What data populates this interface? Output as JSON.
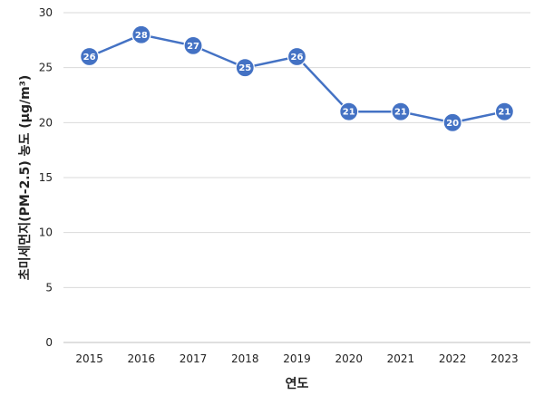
{
  "chart_data": {
    "type": "line",
    "title": "",
    "xlabel": "연도",
    "ylabel": "초미세먼지(PM-2.5) 농도 (μg/m³)",
    "categories": [
      "2015",
      "2016",
      "2017",
      "2018",
      "2019",
      "2020",
      "2021",
      "2022",
      "2023"
    ],
    "series": [
      {
        "values": [
          26,
          28,
          27,
          25,
          26,
          21,
          21,
          20,
          21
        ],
        "data_labels": [
          "26",
          "28",
          "27",
          "25",
          "26",
          "21",
          "21",
          "20",
          "21"
        ]
      }
    ],
    "ylim": [
      0,
      30
    ],
    "y_ticks": [
      "0",
      "5",
      "10",
      "15",
      "20",
      "25",
      "30"
    ],
    "grid": true,
    "legend": "none",
    "colors": {
      "line": "#4472c4",
      "marker": "#4472c4",
      "label_text": "#ffffff",
      "grid": "#d9d9d9"
    }
  }
}
